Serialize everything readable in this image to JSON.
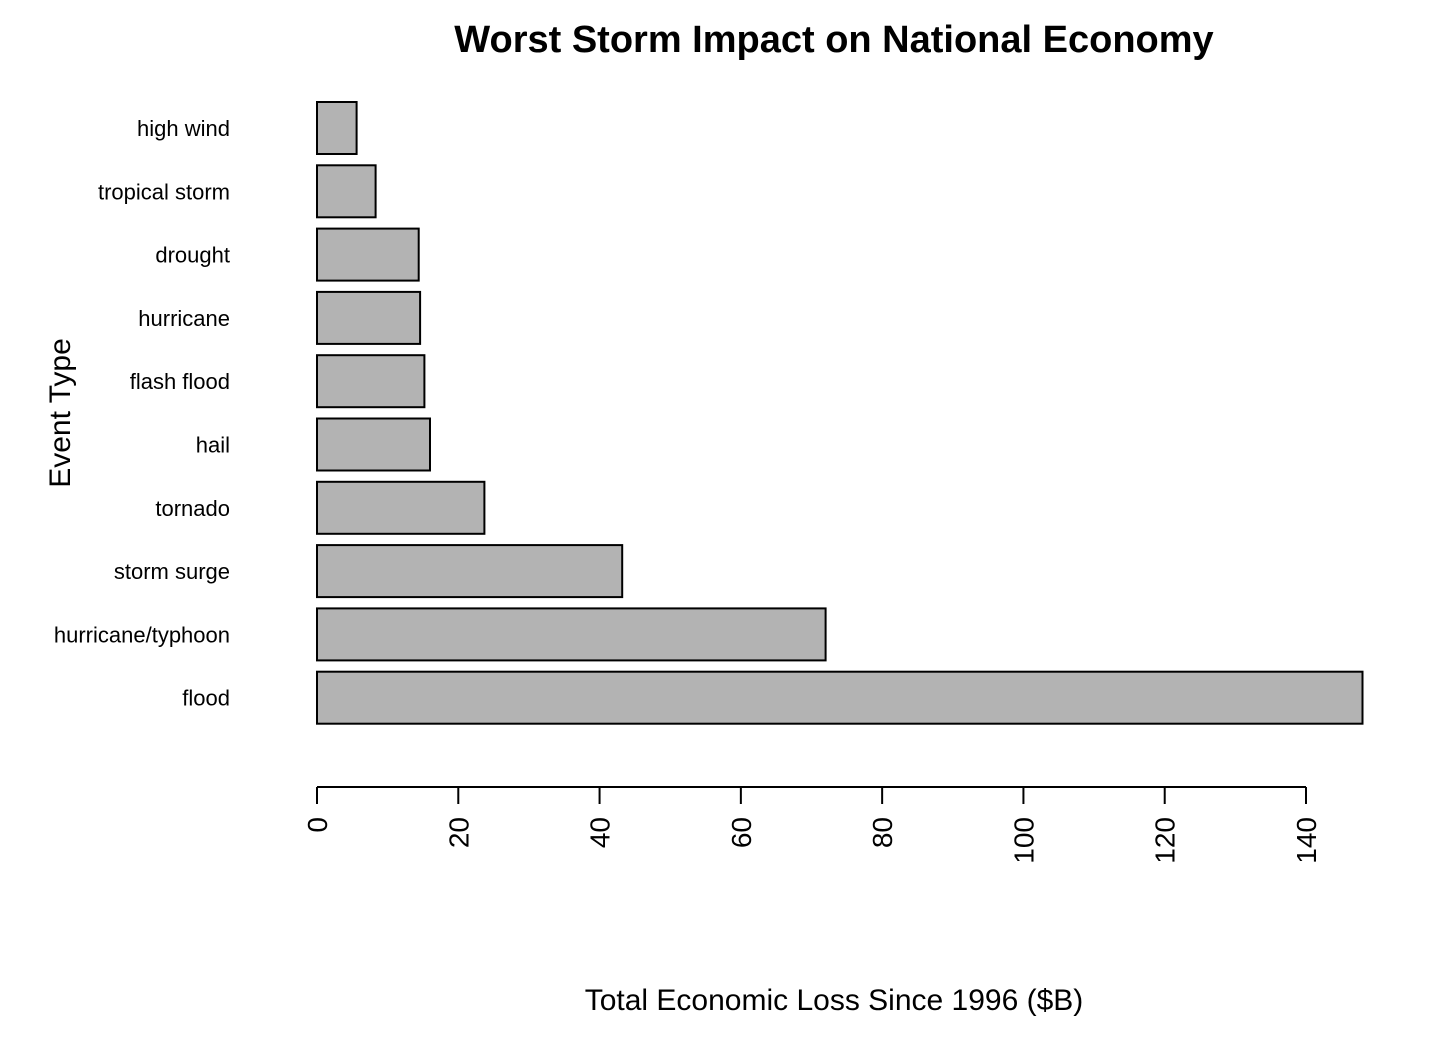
{
  "chart_data": {
    "type": "bar",
    "orientation": "horizontal",
    "title": "Worst Storm Impact on National Economy",
    "xlabel": "Total Economic Loss Since 1996 ($B)",
    "ylabel": "Event Type",
    "categories": [
      "high wind",
      "tropical storm",
      "drought",
      "hurricane",
      "flash flood",
      "hail",
      "tornado",
      "storm surge",
      "hurricane/typhoon",
      "flood"
    ],
    "values": [
      5.6,
      8.3,
      14.4,
      14.6,
      15.2,
      16.0,
      23.7,
      43.2,
      72.0,
      148.0
    ],
    "xticks": [
      "0",
      "20",
      "40",
      "60",
      "80",
      "100",
      "120",
      "140"
    ],
    "xlim": [
      0,
      148
    ],
    "grid": false,
    "bar_color": "#b3b3b3",
    "border_color": "#000000"
  }
}
